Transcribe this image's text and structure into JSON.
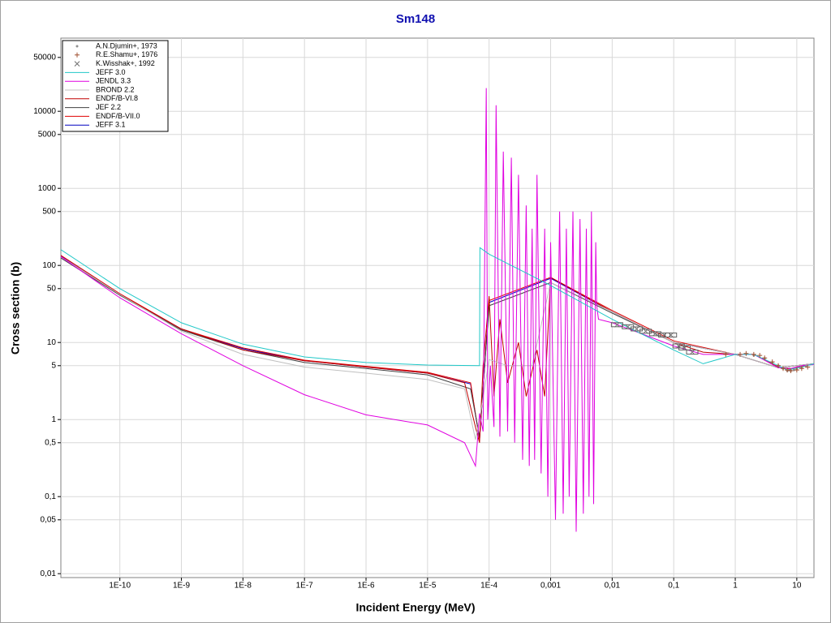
{
  "chart_data": {
    "type": "line",
    "title": "Sm148",
    "x_label": "Incident Energy (MeV)",
    "y_label": "Cross section (b)",
    "xlog": true,
    "ylog": true,
    "grid": true,
    "legend": "upper left",
    "xlim": [
      1.1e-11,
      19
    ],
    "ylim": [
      0.0089,
      89000
    ],
    "xticks": [
      {
        "value": 1e-10,
        "label": "1E-10"
      },
      {
        "value": 1e-09,
        "label": "1E-9"
      },
      {
        "value": 1e-08,
        "label": "1E-8"
      },
      {
        "value": 1e-07,
        "label": "1E-7"
      },
      {
        "value": 1e-06,
        "label": "1E-6"
      },
      {
        "value": 1e-05,
        "label": "1E-5"
      },
      {
        "value": 0.0001,
        "label": "1E-4"
      },
      {
        "value": 0.001,
        "label": "0,001"
      },
      {
        "value": 0.01,
        "label": "0,01"
      },
      {
        "value": 0.1,
        "label": "0,1"
      },
      1,
      10
    ],
    "yticks": [
      {
        "value": 0.01,
        "label": "0,01"
      },
      {
        "value": 0.05,
        "label": "0,05"
      },
      {
        "value": 0.1,
        "label": "0,1"
      },
      {
        "value": 0.5,
        "label": "0,5"
      },
      1,
      5,
      10,
      50,
      100,
      500,
      1000,
      5000,
      10000,
      50000
    ],
    "series": [
      {
        "name": "A.N.Djumin+, 1973",
        "style": "dot",
        "color": "#909090",
        "x": [
          2,
          3,
          4,
          5,
          6,
          7,
          8,
          9,
          10,
          12,
          14
        ],
        "values": [
          6.8,
          6.2,
          5.5,
          5,
          4.6,
          4.3,
          4.3,
          4.4,
          4.5,
          4.7,
          4.9
        ]
      },
      {
        "name": "R.E.Shamu+, 1976",
        "style": "plus",
        "color": "#a05030",
        "x": [
          0.7,
          1.2,
          1.5,
          2,
          2.5,
          3,
          4,
          5,
          6,
          7,
          8,
          10,
          12,
          15
        ],
        "values": [
          7,
          7,
          7.2,
          7,
          6.8,
          6.3,
          5.6,
          5,
          4.6,
          4.4,
          4.3,
          4.4,
          4.6,
          4.8
        ]
      },
      {
        "name": "K.Wisshak+, 1992",
        "style": "cross",
        "color": "#707070",
        "x": [
          0.012,
          0.018,
          0.025,
          0.035,
          0.05,
          0.07,
          0.09,
          0.12,
          0.15,
          0.2
        ],
        "values": [
          17,
          16,
          15,
          14,
          13,
          12.5,
          12.5,
          9,
          8.5,
          7.5
        ]
      },
      {
        "name": "JEFF 3.0",
        "style": "line",
        "color": "#20c8c8",
        "x": [
          1.1e-11,
          1e-10,
          1e-09,
          1e-08,
          1e-07,
          1e-06,
          1e-05,
          7e-05,
          7.1e-05,
          0.0001,
          0.001,
          0.01,
          0.1,
          0.3,
          1,
          2,
          5,
          7,
          12,
          19
        ],
        "values": [
          160,
          50,
          18,
          9.5,
          6.5,
          5.5,
          5.1,
          5,
          170,
          140,
          55,
          20,
          8,
          5.3,
          7,
          7,
          5,
          4.4,
          4.8,
          5.3
        ]
      },
      {
        "name": "JENDL 3.3",
        "style": "line",
        "color": "#e000e0",
        "x": [
          1.1e-11,
          1e-10,
          1e-09,
          1e-08,
          1e-07,
          1e-06,
          1e-05,
          4e-05,
          6e-05,
          7e-05,
          8e-05,
          9e-05,
          9.5e-05,
          0.000105,
          0.00012,
          0.00013,
          0.00015,
          0.00017,
          0.0002,
          0.00023,
          0.00026,
          0.0003,
          0.00035,
          0.0004,
          0.00045,
          0.0005,
          0.00055,
          0.0006,
          0.0007,
          0.0008,
          0.0009,
          0.001,
          0.0012,
          0.0014,
          0.0016,
          0.0018,
          0.002,
          0.0023,
          0.0026,
          0.003,
          0.0034,
          0.0038,
          0.0042,
          0.0046,
          0.005,
          0.0054,
          0.0056,
          0.006,
          0.01,
          0.03,
          0.1,
          0.3,
          1,
          2,
          5,
          8,
          12,
          19
        ],
        "values": [
          130,
          38,
          13,
          5,
          2.1,
          1.15,
          0.85,
          0.5,
          0.25,
          1.2,
          0.7,
          20000,
          1,
          5,
          0.8,
          12000,
          0.6,
          3000,
          0.7,
          2500,
          0.5,
          1500,
          0.3,
          600,
          0.25,
          300,
          0.3,
          1500,
          0.2,
          300,
          0.1,
          200,
          0.05,
          500,
          0.06,
          300,
          0.1,
          500,
          0.035,
          400,
          0.06,
          300,
          0.1,
          500,
          0.08,
          200,
          30,
          20,
          18,
          13,
          9,
          7,
          7,
          7,
          4.7,
          4.6,
          5,
          5.2
        ]
      },
      {
        "name": "BROND 2.2",
        "style": "line",
        "color": "#c0c0c0",
        "x": [
          1.1e-11,
          1e-10,
          1e-09,
          1e-08,
          1e-07,
          1e-06,
          1e-05,
          4e-05,
          6e-05,
          7e-05,
          0.0001,
          0.0002,
          0.0005,
          0.001,
          0.01,
          0.1,
          1,
          5,
          19
        ],
        "values": [
          130,
          42,
          14,
          7,
          4.8,
          4,
          3.3,
          2.5,
          0.55,
          1,
          6,
          5,
          5,
          60,
          25,
          10,
          7,
          4.7,
          5.3
        ]
      },
      {
        "name": "ENDF/B-VI.8",
        "style": "line",
        "color": "#c00000",
        "x": [
          1.1e-11,
          1e-10,
          1e-09,
          1e-08,
          1e-07,
          1e-06,
          1e-05,
          4e-05,
          6e-05,
          7e-05,
          8e-05,
          0.0001,
          0.00012,
          0.00015,
          0.0002,
          0.0003,
          0.0004,
          0.0006,
          0.0008,
          0.001,
          0.01,
          0.1,
          0.3,
          1,
          2,
          5,
          8,
          19
        ],
        "values": [
          130,
          42,
          15,
          8,
          5.8,
          4.8,
          4,
          3,
          0.8,
          0.5,
          5,
          40,
          2,
          20,
          3,
          10,
          2,
          8,
          2,
          70,
          25,
          10,
          7.5,
          7,
          7,
          4.8,
          4.5,
          5.3
        ]
      },
      {
        "name": "JEF 2.2",
        "style": "line",
        "color": "#404040",
        "x": [
          1.1e-11,
          1e-10,
          1e-09,
          1e-08,
          1e-07,
          1e-06,
          1e-05,
          5e-05,
          7e-05,
          0.0001,
          0.001,
          0.01,
          0.1,
          1,
          5,
          19
        ],
        "values": [
          125,
          41,
          14.5,
          8,
          5.5,
          4.6,
          3.8,
          2.5,
          0.6,
          30,
          60,
          24,
          10,
          7,
          4.7,
          5.3
        ]
      },
      {
        "name": "ENDF/B-VII.0",
        "style": "line",
        "color": "#e00000",
        "x": [
          1.1e-11,
          1e-10,
          1e-09,
          1e-08,
          1e-07,
          1e-06,
          1e-05,
          5e-05,
          7e-05,
          0.0001,
          0.001,
          0.01,
          0.1,
          1,
          5,
          19
        ],
        "values": [
          135,
          43,
          15,
          8.5,
          5.9,
          4.9,
          4.1,
          3,
          0.55,
          35,
          70,
          26,
          10.5,
          7,
          4.7,
          5.3
        ]
      },
      {
        "name": "JEFF 3.1",
        "style": "line",
        "color": "#0000c0",
        "x": [
          1.1e-11,
          1e-10,
          1e-09,
          1e-08,
          1e-07,
          1e-06,
          1e-05,
          5e-05,
          7e-05,
          0.0001,
          0.001,
          0.01,
          0.1,
          1,
          5,
          19
        ],
        "values": [
          132,
          42,
          15,
          8.3,
          5.8,
          4.8,
          4,
          2.9,
          0.55,
          33,
          68,
          25,
          10,
          7,
          4.7,
          5.3
        ]
      }
    ]
  }
}
